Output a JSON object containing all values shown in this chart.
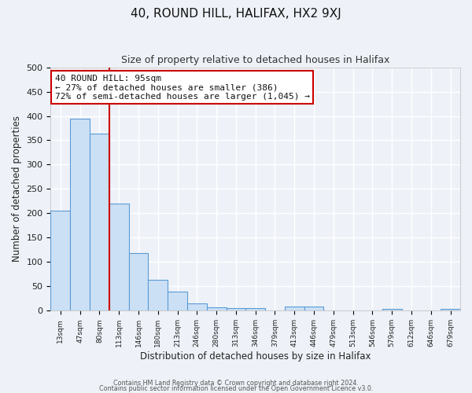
{
  "title": "40, ROUND HILL, HALIFAX, HX2 9XJ",
  "subtitle": "Size of property relative to detached houses in Halifax",
  "xlabel": "Distribution of detached houses by size in Halifax",
  "ylabel": "Number of detached properties",
  "bar_labels": [
    "13sqm",
    "47sqm",
    "80sqm",
    "113sqm",
    "146sqm",
    "180sqm",
    "213sqm",
    "246sqm",
    "280sqm",
    "313sqm",
    "346sqm",
    "379sqm",
    "413sqm",
    "446sqm",
    "479sqm",
    "513sqm",
    "546sqm",
    "579sqm",
    "612sqm",
    "646sqm",
    "679sqm"
  ],
  "bar_values": [
    205,
    395,
    363,
    220,
    118,
    63,
    40,
    15,
    7,
    5,
    5,
    0,
    8,
    8,
    0,
    0,
    0,
    3,
    0,
    0,
    3
  ],
  "bar_color": "#cce0f5",
  "bar_edge_color": "#5a9ad5",
  "vline_color": "#cc0000",
  "annotation_title": "40 ROUND HILL: 95sqm",
  "annotation_line1": "← 27% of detached houses are smaller (386)",
  "annotation_line2": "72% of semi-detached houses are larger (1,045) →",
  "annotation_box_facecolor": "white",
  "annotation_box_edge": "#cc0000",
  "ylim": [
    0,
    500
  ],
  "yticks": [
    0,
    50,
    100,
    150,
    200,
    250,
    300,
    350,
    400,
    450,
    500
  ],
  "footnote1": "Contains HM Land Registry data © Crown copyright and database right 2024.",
  "footnote2": "Contains public sector information licensed under the Open Government Licence v3.0.",
  "bg_color": "#eef2f8",
  "grid_color": "#ffffff",
  "title_fontsize": 11,
  "subtitle_fontsize": 9
}
